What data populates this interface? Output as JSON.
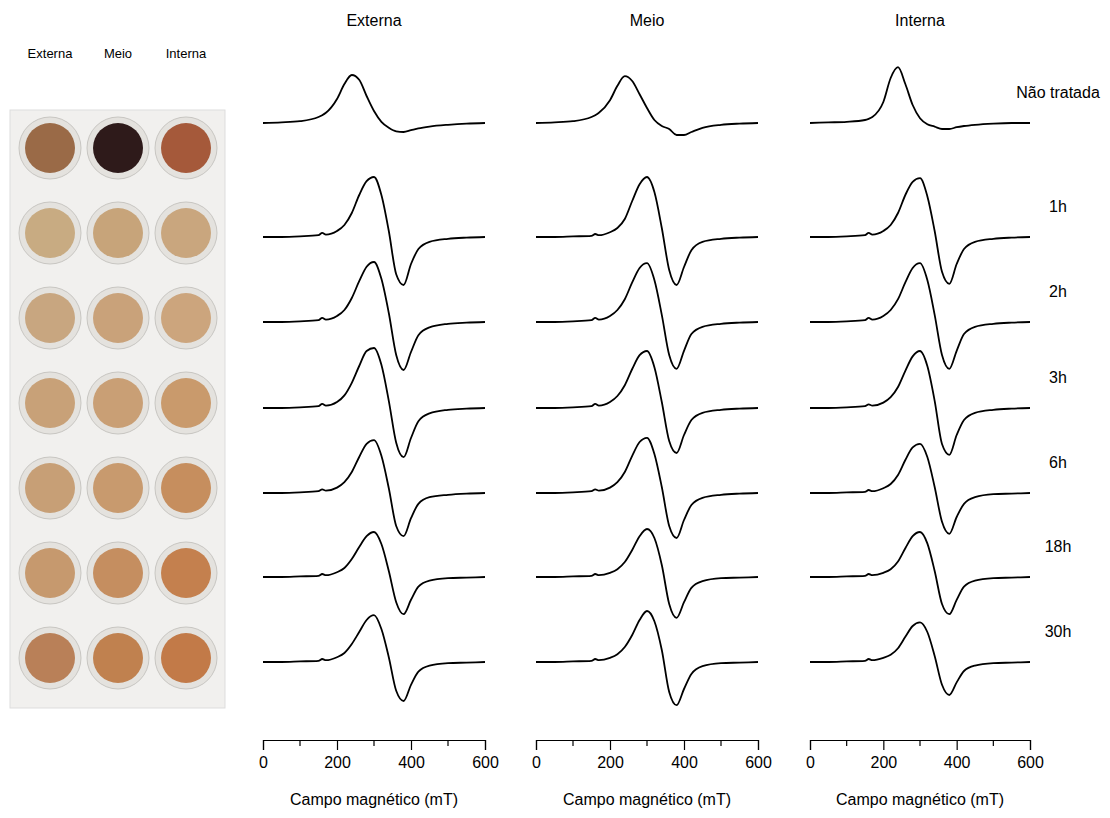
{
  "chart_data": [
    {
      "type": "line",
      "title": "Externa",
      "x_label": "Campo magnético (mT)",
      "color": "#000000",
      "xlim": [
        0,
        600
      ],
      "xticks": [
        0,
        200,
        400,
        600
      ],
      "xminor": [
        100,
        300,
        500
      ],
      "ylim": [
        -1,
        1
      ],
      "tick_labels": "x",
      "x": [
        0,
        50,
        100,
        150,
        160,
        170,
        200,
        220,
        240,
        260,
        280,
        300,
        320,
        340,
        360,
        380,
        400,
        420,
        450,
        500,
        550,
        600
      ],
      "series": [
        {
          "values": [
            0,
            0.01,
            0.03,
            0.1,
            0.13,
            0.17,
            0.4,
            0.65,
            0.8,
            0.72,
            0.45,
            0.2,
            0.02,
            -0.08,
            -0.14,
            -0.15,
            -0.12,
            -0.09,
            -0.06,
            -0.03,
            -0.01,
            0
          ]
        },
        {
          "values": [
            0,
            0,
            0.01,
            0.03,
            0.07,
            0.04,
            0.1,
            0.2,
            0.4,
            0.7,
            0.93,
            1.0,
            0.7,
            0.1,
            -0.62,
            -0.8,
            -0.45,
            -0.2,
            -0.08,
            -0.03,
            -0.01,
            0
          ]
        },
        {
          "values": [
            0,
            0,
            0.01,
            0.03,
            0.07,
            0.04,
            0.1,
            0.2,
            0.4,
            0.68,
            0.92,
            1.0,
            0.72,
            0.15,
            -0.55,
            -0.8,
            -0.5,
            -0.22,
            -0.09,
            -0.03,
            -0.01,
            0
          ]
        },
        {
          "values": [
            0,
            0,
            0.01,
            0.03,
            0.07,
            0.04,
            0.1,
            0.21,
            0.42,
            0.7,
            0.95,
            1.0,
            0.72,
            0.12,
            -0.58,
            -0.82,
            -0.5,
            -0.22,
            -0.09,
            -0.03,
            -0.01,
            0
          ]
        },
        {
          "values": [
            0,
            0,
            0.01,
            0.03,
            0.06,
            0.04,
            0.09,
            0.18,
            0.35,
            0.6,
            0.82,
            0.88,
            0.62,
            0.08,
            -0.55,
            -0.72,
            -0.42,
            -0.18,
            -0.07,
            -0.03,
            -0.01,
            0
          ]
        },
        {
          "values": [
            0,
            0,
            0.01,
            0.02,
            0.05,
            0.03,
            0.08,
            0.15,
            0.3,
            0.5,
            0.68,
            0.75,
            0.55,
            0.1,
            -0.42,
            -0.62,
            -0.38,
            -0.16,
            -0.06,
            -0.02,
            -0.01,
            0
          ]
        },
        {
          "values": [
            0,
            0,
            0.01,
            0.02,
            0.05,
            0.03,
            0.08,
            0.15,
            0.3,
            0.5,
            0.7,
            0.78,
            0.55,
            0.08,
            -0.48,
            -0.65,
            -0.38,
            -0.16,
            -0.06,
            -0.02,
            -0.01,
            0
          ]
        }
      ]
    },
    {
      "type": "line",
      "title": "Meio",
      "x_label": "Campo magnético (mT)",
      "color": "#000000",
      "xlim": [
        0,
        600
      ],
      "xticks": [
        0,
        200,
        400,
        600
      ],
      "xminor": [
        100,
        300,
        500
      ],
      "ylim": [
        -1,
        1
      ],
      "tick_labels": "x",
      "x": [
        0,
        50,
        100,
        150,
        160,
        170,
        200,
        220,
        240,
        260,
        280,
        300,
        320,
        340,
        360,
        380,
        400,
        420,
        450,
        500,
        550,
        600
      ],
      "series": [
        {
          "values": [
            0,
            0.01,
            0.03,
            0.1,
            0.13,
            0.17,
            0.38,
            0.62,
            0.78,
            0.7,
            0.48,
            0.25,
            0.05,
            -0.05,
            -0.1,
            -0.2,
            -0.2,
            -0.15,
            -0.08,
            -0.03,
            -0.01,
            0
          ]
        },
        {
          "values": [
            0,
            0,
            0.01,
            0.02,
            0.05,
            0.03,
            0.08,
            0.15,
            0.3,
            0.6,
            0.88,
            1.0,
            0.75,
            0.15,
            -0.55,
            -0.8,
            -0.5,
            -0.22,
            -0.08,
            -0.03,
            -0.01,
            0
          ]
        },
        {
          "values": [
            0,
            0,
            0.01,
            0.03,
            0.07,
            0.04,
            0.1,
            0.2,
            0.38,
            0.66,
            0.9,
            0.98,
            0.7,
            0.12,
            -0.55,
            -0.78,
            -0.48,
            -0.2,
            -0.08,
            -0.03,
            -0.01,
            0
          ]
        },
        {
          "values": [
            0,
            0,
            0.01,
            0.03,
            0.07,
            0.04,
            0.1,
            0.2,
            0.38,
            0.65,
            0.88,
            0.95,
            0.68,
            0.1,
            -0.55,
            -0.75,
            -0.45,
            -0.2,
            -0.08,
            -0.03,
            -0.01,
            0
          ]
        },
        {
          "values": [
            0,
            0,
            0.01,
            0.03,
            0.06,
            0.04,
            0.09,
            0.18,
            0.35,
            0.62,
            0.85,
            0.92,
            0.65,
            0.1,
            -0.55,
            -0.75,
            -0.45,
            -0.2,
            -0.08,
            -0.03,
            -0.01,
            0
          ]
        },
        {
          "values": [
            0,
            0,
            0.01,
            0.02,
            0.05,
            0.03,
            0.07,
            0.13,
            0.25,
            0.45,
            0.68,
            0.8,
            0.65,
            0.2,
            -0.45,
            -0.68,
            -0.42,
            -0.18,
            -0.07,
            -0.02,
            -0.01,
            0
          ]
        },
        {
          "values": [
            0,
            0,
            0.01,
            0.02,
            0.05,
            0.03,
            0.07,
            0.13,
            0.25,
            0.45,
            0.7,
            0.85,
            0.68,
            0.2,
            -0.5,
            -0.72,
            -0.45,
            -0.2,
            -0.07,
            -0.02,
            -0.01,
            0
          ]
        }
      ]
    },
    {
      "type": "line",
      "title": "Interna",
      "x_label": "Campo magnético (mT)",
      "color": "#000000",
      "xlim": [
        0,
        600
      ],
      "xticks": [
        0,
        200,
        400,
        600
      ],
      "xminor": [
        100,
        300,
        500
      ],
      "ylim": [
        -1,
        1
      ],
      "tick_labels": "x",
      "x": [
        0,
        50,
        100,
        150,
        160,
        170,
        200,
        220,
        240,
        260,
        280,
        300,
        320,
        340,
        360,
        380,
        400,
        420,
        450,
        500,
        550,
        600
      ],
      "series": [
        {
          "values": [
            0,
            0.01,
            0.02,
            0.05,
            0.07,
            0.1,
            0.35,
            0.75,
            0.93,
            0.65,
            0.3,
            0.08,
            -0.02,
            -0.06,
            -0.1,
            -0.1,
            -0.07,
            -0.05,
            -0.03,
            -0.01,
            0,
            0
          ]
        },
        {
          "values": [
            0,
            0,
            0.01,
            0.03,
            0.07,
            0.04,
            0.1,
            0.2,
            0.4,
            0.7,
            0.92,
            0.98,
            0.68,
            0.1,
            -0.58,
            -0.78,
            -0.45,
            -0.2,
            -0.08,
            -0.03,
            -0.01,
            0
          ]
        },
        {
          "values": [
            0,
            0,
            0.01,
            0.03,
            0.07,
            0.04,
            0.1,
            0.2,
            0.38,
            0.66,
            0.9,
            0.98,
            0.7,
            0.12,
            -0.55,
            -0.78,
            -0.48,
            -0.2,
            -0.08,
            -0.03,
            -0.01,
            0
          ]
        },
        {
          "values": [
            0,
            0,
            0.01,
            0.03,
            0.06,
            0.04,
            0.09,
            0.18,
            0.35,
            0.62,
            0.86,
            0.95,
            0.7,
            0.12,
            -0.6,
            -0.78,
            -0.45,
            -0.2,
            -0.08,
            -0.03,
            -0.01,
            0
          ]
        },
        {
          "values": [
            0,
            0,
            0.01,
            0.02,
            0.05,
            0.03,
            0.08,
            0.15,
            0.3,
            0.55,
            0.76,
            0.82,
            0.6,
            0.1,
            -0.48,
            -0.68,
            -0.4,
            -0.18,
            -0.07,
            -0.02,
            -0.01,
            0
          ]
        },
        {
          "values": [
            0,
            0,
            0.01,
            0.02,
            0.05,
            0.03,
            0.07,
            0.13,
            0.26,
            0.48,
            0.68,
            0.75,
            0.56,
            0.1,
            -0.45,
            -0.62,
            -0.38,
            -0.16,
            -0.06,
            -0.02,
            -0.01,
            0
          ]
        },
        {
          "values": [
            0,
            0,
            0.01,
            0.02,
            0.05,
            0.03,
            0.07,
            0.12,
            0.23,
            0.42,
            0.6,
            0.66,
            0.5,
            0.1,
            -0.38,
            -0.55,
            -0.34,
            -0.15,
            -0.06,
            -0.02,
            -0.01,
            0
          ]
        }
      ]
    }
  ],
  "row_labels": [
    "Não tratada",
    "1h",
    "2h",
    "3h",
    "6h",
    "18h",
    "30h"
  ],
  "photo": {
    "labels": [
      "Externa",
      "Meio",
      "Interna"
    ],
    "colors": [
      [
        "#9a6a47",
        "#2e1a1a",
        "#a5593a"
      ],
      [
        "#c8ab82",
        "#c7a47a",
        "#c9a67e"
      ],
      [
        "#c8a680",
        "#c9a27a",
        "#cca57d"
      ],
      [
        "#c8a178",
        "#c99f75",
        "#c99a6c"
      ],
      [
        "#c79f76",
        "#c89a6e",
        "#c68e5e"
      ],
      [
        "#c6996e",
        "#c58e60",
        "#c4804e"
      ],
      [
        "#b98058",
        "#c0814f",
        "#c27a48"
      ]
    ]
  }
}
